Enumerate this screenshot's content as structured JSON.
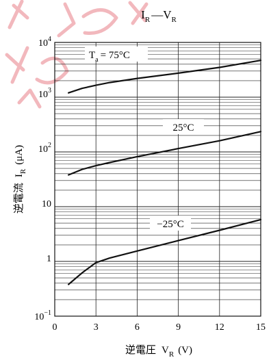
{
  "chart_data": {
    "type": "line",
    "title_main": "I",
    "title_main_sub": "R",
    "title_sep": "—",
    "title_right": "V",
    "title_right_sub": "R",
    "xlabel_text": "逆電圧",
    "xlabel_sym": "V",
    "xlabel_sub": "R",
    "xlabel_unit": "(V)",
    "ylabel_text": "逆電流",
    "ylabel_sym": "I",
    "ylabel_sub": "R",
    "ylabel_unit": "(μA)",
    "xlim": [
      0,
      15
    ],
    "ylim": [
      0.1,
      10000
    ],
    "y_scale": "log",
    "grid": true,
    "x_ticks": [
      "0",
      "3",
      "6",
      "9",
      "12",
      "15"
    ],
    "y_tick_labels": {
      "t4_base": "10",
      "t4_exp": "4",
      "t3_base": "10",
      "t3_exp": "3",
      "t2_base": "10",
      "t2_exp": "2",
      "t1": "10",
      "t0": "1",
      "tm1_base": "10",
      "tm1_exp": "−1"
    },
    "series": [
      {
        "label_prefix": "T",
        "label_sub": "a",
        "label": "= 75°C",
        "x": [
          1,
          2,
          3,
          4,
          6,
          9,
          12,
          15
        ],
        "y": [
          1200,
          1450,
          1650,
          1850,
          2200,
          2750,
          3500,
          4700
        ]
      },
      {
        "label": "25°C",
        "x": [
          1,
          2,
          3,
          4,
          6,
          9,
          12,
          15
        ],
        "y": [
          38,
          48,
          56,
          64,
          82,
          115,
          160,
          235
        ]
      },
      {
        "label": "−25°C",
        "x": [
          1,
          2,
          3,
          4,
          6,
          9,
          12,
          15
        ],
        "y": [
          0.38,
          0.62,
          0.95,
          1.15,
          1.55,
          2.4,
          3.7,
          5.8
        ]
      }
    ]
  }
}
